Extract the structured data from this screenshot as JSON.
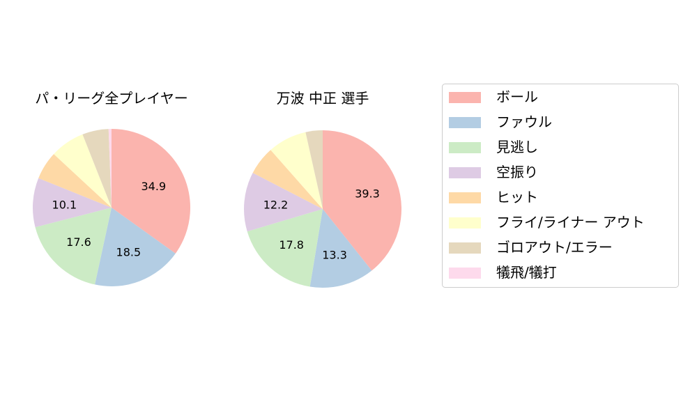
{
  "chart_data": [
    {
      "type": "pie",
      "title": "パ・リーグ全プレイヤー",
      "categories": [
        "ボール",
        "ファウル",
        "見逃し",
        "空振り",
        "ヒット",
        "フライ/ライナー アウト",
        "ゴロアウト/エラー",
        "犠飛/犠打"
      ],
      "values": [
        34.9,
        18.5,
        17.6,
        10.1,
        5.8,
        7.1,
        5.4,
        0.6
      ],
      "labels": [
        "34.9",
        "18.5",
        "17.6",
        "10.1",
        "",
        "",
        "",
        ""
      ]
    },
    {
      "type": "pie",
      "title": "万波 中正  選手",
      "categories": [
        "ボール",
        "ファウル",
        "見逃し",
        "空振り",
        "ヒット",
        "フライ/ライナー アウト",
        "ゴロアウト/エラー",
        "犠飛/犠打"
      ],
      "values": [
        39.3,
        13.3,
        17.8,
        12.2,
        5.9,
        8.0,
        3.5,
        0.0
      ],
      "labels": [
        "39.3",
        "13.3",
        "17.8",
        "12.2",
        "",
        "",
        "",
        ""
      ]
    }
  ],
  "legend": {
    "placement": "right",
    "entries": [
      "ボール",
      "ファウル",
      "見逃し",
      "空振り",
      "ヒット",
      "フライ/ライナー アウト",
      "ゴロアウト/エラー",
      "犠飛/犠打"
    ]
  },
  "colors": [
    "#fbb4ae",
    "#b3cde3",
    "#ccebc5",
    "#decbe4",
    "#fed9a6",
    "#ffffcc",
    "#e5d8bd",
    "#fddaec"
  ]
}
